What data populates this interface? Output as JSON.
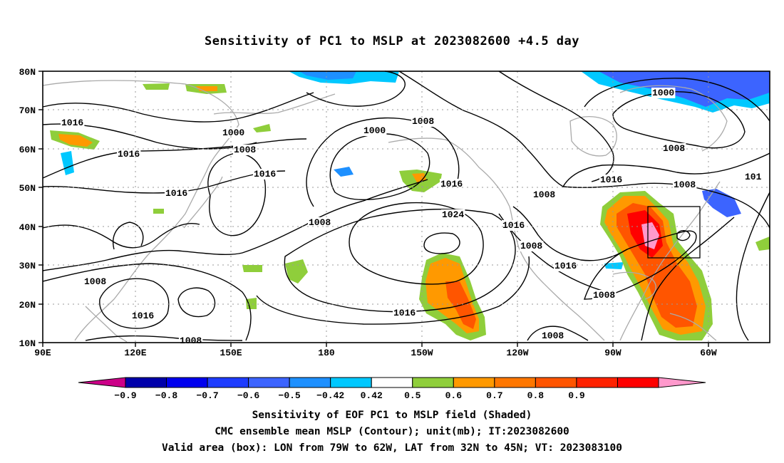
{
  "title": "Sensitivity of PC1 to MSLP at 2023082600 +4.5 day",
  "lat_ticks": [
    "80N",
    "70N",
    "60N",
    "50N",
    "40N",
    "30N",
    "20N",
    "10N"
  ],
  "lon_ticks": [
    "90E",
    "120E",
    "150E",
    "180",
    "150W",
    "120W",
    "90W",
    "60W"
  ],
  "contour_labels": [
    {
      "text": "1016"
    },
    {
      "text": "1000"
    },
    {
      "text": "1016"
    },
    {
      "text": "1008"
    },
    {
      "text": "1016"
    },
    {
      "text": "1016"
    },
    {
      "text": "1008"
    },
    {
      "text": "1000"
    },
    {
      "text": "1008"
    },
    {
      "text": "1016"
    },
    {
      "text": "1024"
    },
    {
      "text": "1016"
    },
    {
      "text": "1008"
    },
    {
      "text": "1016"
    },
    {
      "text": "1008"
    },
    {
      "text": "1008"
    },
    {
      "text": "1016"
    },
    {
      "text": "1000"
    },
    {
      "text": "1008"
    },
    {
      "text": "1016"
    },
    {
      "text": "1008"
    },
    {
      "text": "101"
    },
    {
      "text": "1008"
    },
    {
      "text": "1008"
    },
    {
      "text": "1008"
    }
  ],
  "colorbar": {
    "colors": [
      "#cc0088",
      "#0000aa",
      "#0000ee",
      "#1e3cff",
      "#3c64ff",
      "#1e90ff",
      "#00c8ff",
      "#ffffff",
      "#8fce3b",
      "#ff9900",
      "#ff7700",
      "#ff5500",
      "#ff2200",
      "#ff0000",
      "#ff99cc"
    ],
    "labels": [
      "−0.9",
      "−0.8",
      "−0.7",
      "−0.6",
      "−0.5",
      "−0.42",
      "0.42",
      "0.5",
      "0.6",
      "0.7",
      "0.8",
      "0.9"
    ]
  },
  "caption": {
    "line1": "Sensitivity of EOF PC1 to MSLP field (Shaded)",
    "line2": "CMC ensemble mean MSLP (Contour); unit(mb); IT:2023082600",
    "line3": "Valid area (box): LON from 79W to 62W, LAT from 32N to 45N; VT: 2023083100"
  }
}
